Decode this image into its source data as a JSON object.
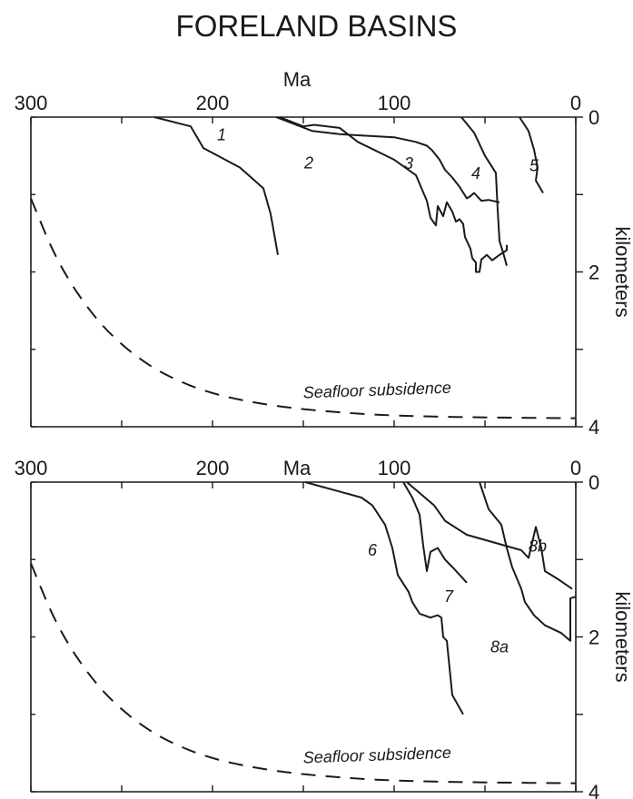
{
  "title": "FORELAND BASINS",
  "chart_data": [
    {
      "type": "line",
      "xlabel": "Ma",
      "ylabel": "kilometers",
      "xlim": [
        300,
        0
      ],
      "ylim": [
        0,
        4
      ],
      "x_ticks": [
        300,
        250,
        200,
        150,
        100,
        50,
        0
      ],
      "x_tick_labels": [
        "300",
        "",
        "200",
        "",
        "100",
        "",
        "0"
      ],
      "y_ticks": [
        0,
        1,
        2,
        3,
        4
      ],
      "y_tick_labels": [
        "0",
        "",
        "2",
        "",
        "4"
      ],
      "annotation": "Seafloor subsidence",
      "series": [
        {
          "name": "1",
          "label_at": [
            195,
            0.3
          ],
          "points": [
            [
              232,
              0
            ],
            [
              212,
              0.12
            ],
            [
              205,
              0.4
            ],
            [
              185,
              0.65
            ],
            [
              172,
              0.92
            ],
            [
              168,
              1.25
            ],
            [
              164,
              1.78
            ]
          ]
        },
        {
          "name": "2",
          "label_at": [
            147,
            0.66
          ],
          "points": [
            [
              163,
              0
            ],
            [
              150,
              0.12
            ],
            [
              144,
              0.1
            ],
            [
              130,
              0.14
            ],
            [
              120,
              0.32
            ],
            [
              100,
              0.55
            ],
            [
              88,
              0.75
            ],
            [
              82,
              1.08
            ],
            [
              80,
              1.3
            ],
            [
              77,
              1.4
            ],
            [
              76,
              1.15
            ],
            [
              73,
              1.28
            ],
            [
              71,
              1.1
            ],
            [
              68,
              1.22
            ],
            [
              66,
              1.35
            ],
            [
              64,
              1.32
            ],
            [
              62,
              1.38
            ],
            [
              61,
              1.55
            ],
            [
              58,
              1.7
            ],
            [
              57,
              1.82
            ],
            [
              55,
              1.88
            ],
            [
              55,
              2.0
            ],
            [
              53,
              2.0
            ],
            [
              52,
              1.84
            ],
            [
              49,
              1.78
            ],
            [
              46,
              1.85
            ],
            [
              42,
              1.78
            ],
            [
              38,
              1.72
            ],
            [
              38,
              1.65
            ]
          ]
        },
        {
          "name": "3",
          "label_at": [
            92,
            0.67
          ],
          "points": [
            [
              165,
              0
            ],
            [
              145,
              0.18
            ],
            [
              130,
              0.22
            ],
            [
              100,
              0.26
            ],
            [
              88,
              0.32
            ],
            [
              82,
              0.37
            ],
            [
              79,
              0.43
            ],
            [
              75,
              0.55
            ],
            [
              72,
              0.68
            ],
            [
              68,
              0.78
            ],
            [
              64,
              0.9
            ],
            [
              60,
              1.05
            ],
            [
              58,
              1.02
            ],
            [
              56,
              0.98
            ],
            [
              52,
              1.08
            ],
            [
              48,
              1.07
            ],
            [
              42,
              1.1
            ]
          ]
        },
        {
          "name": "4",
          "label_at": [
            55,
            0.8
          ],
          "points": [
            [
              63,
              0
            ],
            [
              56,
              0.2
            ],
            [
              50,
              0.5
            ],
            [
              44,
              0.72
            ],
            [
              43,
              1.2
            ],
            [
              42,
              1.6
            ],
            [
              40,
              1.75
            ],
            [
              38,
              1.92
            ]
          ]
        },
        {
          "name": "5",
          "label_at": [
            23,
            0.7
          ],
          "points": [
            [
              31,
              0
            ],
            [
              26,
              0.18
            ],
            [
              23,
              0.42
            ],
            [
              21,
              0.65
            ],
            [
              22,
              0.82
            ],
            [
              18,
              0.98
            ]
          ]
        }
      ],
      "reference_curve": {
        "name": "Seafloor subsidence",
        "points": [
          [
            300,
            1.05
          ],
          [
            285,
            1.9
          ],
          [
            265,
            2.6
          ],
          [
            245,
            3.05
          ],
          [
            225,
            3.35
          ],
          [
            200,
            3.58
          ],
          [
            170,
            3.72
          ],
          [
            140,
            3.8
          ],
          [
            100,
            3.86
          ],
          [
            50,
            3.88
          ],
          [
            0,
            3.89
          ]
        ]
      }
    },
    {
      "type": "line",
      "xlabel": "Ma",
      "ylabel": "kilometers",
      "xlim": [
        300,
        0
      ],
      "ylim": [
        0,
        4
      ],
      "x_ticks": [
        300,
        250,
        200,
        150,
        100,
        50,
        0
      ],
      "x_tick_labels": [
        "300",
        "",
        "200",
        "",
        "100",
        "",
        "0"
      ],
      "y_ticks": [
        0,
        1,
        2,
        3,
        4
      ],
      "y_tick_labels": [
        "0",
        "",
        "2",
        "",
        "4"
      ],
      "annotation": "Seafloor subsidence",
      "series": [
        {
          "name": "6",
          "label_at": [
            112,
            0.95
          ],
          "points": [
            [
              149,
              0
            ],
            [
              118,
              0.2
            ],
            [
              112,
              0.3
            ],
            [
              105,
              0.55
            ],
            [
              101,
              0.85
            ],
            [
              98,
              1.2
            ],
            [
              92,
              1.42
            ],
            [
              90,
              1.55
            ],
            [
              86,
              1.7
            ],
            [
              80,
              1.75
            ],
            [
              76,
              1.72
            ],
            [
              74,
              1.75
            ],
            [
              73,
              2.0
            ],
            [
              71,
              2.05
            ],
            [
              68,
              2.75
            ],
            [
              62,
              3.0
            ]
          ]
        },
        {
          "name": "7",
          "label_at": [
            70,
            1.55
          ],
          "points": [
            [
              95,
              0
            ],
            [
              90,
              0.2
            ],
            [
              86,
              0.42
            ],
            [
              84,
              0.82
            ],
            [
              82,
              1.15
            ],
            [
              80,
              0.9
            ],
            [
              76,
              0.85
            ],
            [
              72,
              1.0
            ],
            [
              67,
              1.12
            ],
            [
              60,
              1.3
            ]
          ]
        },
        {
          "name": "8a",
          "label_at": [
            42,
            2.2
          ],
          "points": [
            [
              53,
              0
            ],
            [
              48,
              0.35
            ],
            [
              41,
              0.55
            ],
            [
              38,
              0.85
            ],
            [
              35,
              1.1
            ],
            [
              30,
              1.38
            ],
            [
              28,
              1.55
            ],
            [
              23,
              1.72
            ],
            [
              17,
              1.85
            ],
            [
              8,
              1.95
            ],
            [
              3,
              2.05
            ],
            [
              3,
              1.5
            ],
            [
              0,
              1.48
            ]
          ]
        },
        {
          "name": "8b",
          "label_at": [
            21,
            0.9
          ],
          "points": [
            [
              93,
              0
            ],
            [
              78,
              0.3
            ],
            [
              72,
              0.5
            ],
            [
              60,
              0.68
            ],
            [
              30,
              0.88
            ],
            [
              26,
              0.98
            ],
            [
              22,
              0.58
            ],
            [
              19,
              0.85
            ],
            [
              17,
              1.15
            ],
            [
              10,
              1.25
            ],
            [
              2,
              1.38
            ]
          ]
        }
      ],
      "reference_curve": {
        "name": "Seafloor subsidence",
        "points": [
          [
            300,
            1.05
          ],
          [
            285,
            1.9
          ],
          [
            265,
            2.6
          ],
          [
            245,
            3.05
          ],
          [
            225,
            3.35
          ],
          [
            200,
            3.58
          ],
          [
            170,
            3.72
          ],
          [
            140,
            3.8
          ],
          [
            100,
            3.86
          ],
          [
            50,
            3.88
          ],
          [
            0,
            3.89
          ]
        ]
      }
    }
  ]
}
